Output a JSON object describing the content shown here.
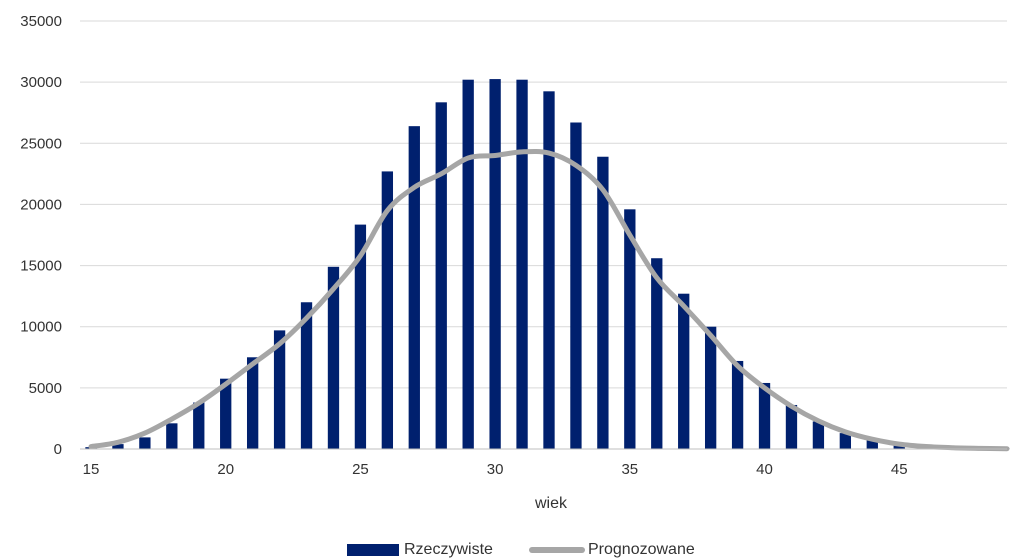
{
  "chart_data": {
    "type": "bar",
    "xlabel": "wiek",
    "ylabel": "",
    "ylim": [
      0,
      35000
    ],
    "yticks": [
      0,
      5000,
      10000,
      15000,
      20000,
      25000,
      30000,
      35000
    ],
    "xlim": [
      15,
      49
    ],
    "xticks": [
      15,
      20,
      25,
      30,
      35,
      40,
      45
    ],
    "grid": true,
    "legend_position": "bottom-center",
    "x": [
      15,
      16,
      17,
      18,
      19,
      20,
      21,
      22,
      23,
      24,
      25,
      26,
      27,
      28,
      29,
      30,
      31,
      32,
      33,
      34,
      35,
      36,
      37,
      38,
      39,
      40,
      41,
      42,
      43,
      44,
      45,
      46,
      47,
      48,
      49
    ],
    "series": [
      {
        "name": "Rzeczywiste",
        "type": "bar",
        "color": "#00206e",
        "values": [
          150,
          400,
          950,
          2100,
          3800,
          5750,
          7500,
          9700,
          12000,
          14900,
          18350,
          22700,
          26400,
          28350,
          30200,
          30250,
          30200,
          29250,
          26700,
          23900,
          19600,
          15600,
          12700,
          10000,
          7200,
          5400,
          3600,
          2250,
          1300,
          700,
          350,
          150,
          60,
          30,
          10
        ]
      },
      {
        "name": "Prognozowane",
        "type": "line",
        "color": "#a6a6a6",
        "values": [
          200,
          550,
          1300,
          2450,
          3750,
          5300,
          6950,
          8600,
          10700,
          13100,
          15800,
          19500,
          21400,
          22500,
          23800,
          24000,
          24300,
          24200,
          23200,
          21200,
          17500,
          14000,
          11700,
          9300,
          6800,
          5000,
          3500,
          2300,
          1400,
          800,
          400,
          200,
          100,
          50,
          20
        ]
      }
    ]
  }
}
